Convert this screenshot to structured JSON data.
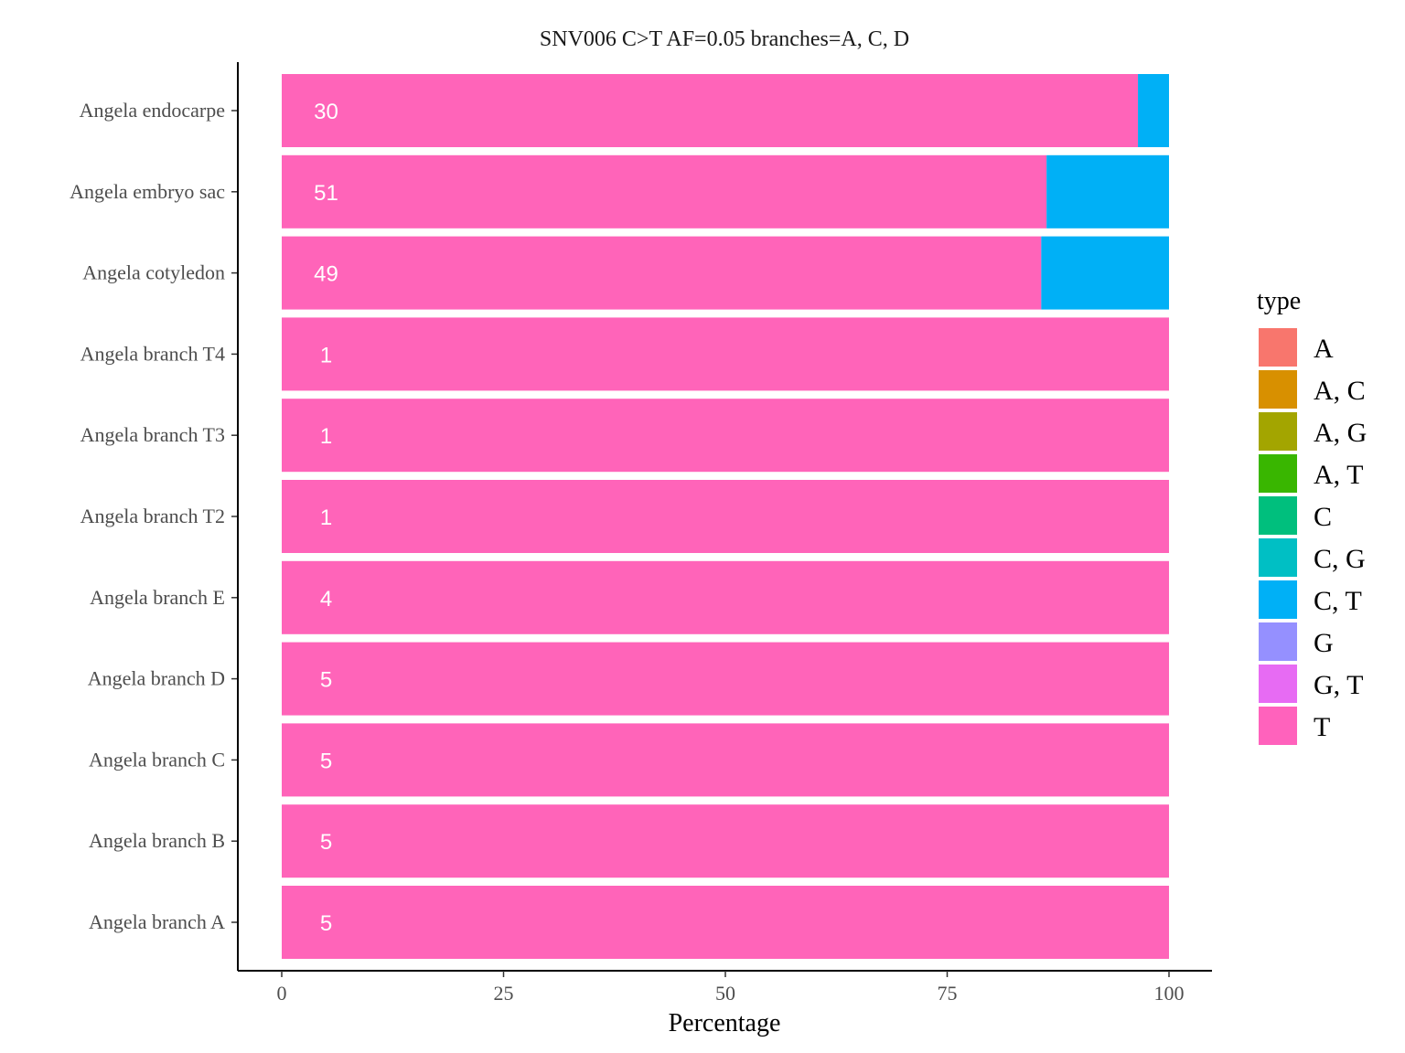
{
  "chart_data": {
    "type": "bar",
    "orientation": "horizontal",
    "stacked": true,
    "title": "SNV006 C>T AF=0.05 branches=A, C, D",
    "xlabel": "Percentage",
    "ylabel": "",
    "xlim": [
      0,
      100
    ],
    "xticks": [
      0,
      25,
      50,
      75,
      100
    ],
    "grid": false,
    "categories": [
      "Angela endocarpe",
      "Angela embryo sac",
      "Angela cotyledon",
      "Angela branch T4",
      "Angela branch T3",
      "Angela branch T2",
      "Angela branch E",
      "Angela branch D",
      "Angela branch C",
      "Angela branch B",
      "Angela branch A"
    ],
    "series": [
      {
        "name": "T",
        "color": "#FF64B9",
        "values": [
          96.5,
          86.2,
          85.6,
          100,
          100,
          100,
          100,
          100,
          100,
          100,
          100
        ]
      },
      {
        "name": "C, T",
        "color": "#00B0F6",
        "values": [
          3.5,
          13.8,
          14.4,
          0,
          0,
          0,
          0,
          0,
          0,
          0,
          0
        ]
      }
    ],
    "bar_labels": [
      "30",
      "51",
      "49",
      "1",
      "1",
      "1",
      "4",
      "5",
      "5",
      "5",
      "5"
    ],
    "legend": {
      "title": "type",
      "position": "right",
      "entries": [
        {
          "label": "A",
          "color": "#F8766D"
        },
        {
          "label": "A, C",
          "color": "#D89000"
        },
        {
          "label": "A, G",
          "color": "#A3A500"
        },
        {
          "label": "A, T",
          "color": "#39B600"
        },
        {
          "label": "C",
          "color": "#00BF7D"
        },
        {
          "label": "C, G",
          "color": "#00BFC4"
        },
        {
          "label": "C, T",
          "color": "#00B0F6"
        },
        {
          "label": "G",
          "color": "#9590FF"
        },
        {
          "label": "G, T",
          "color": "#E76BF3"
        },
        {
          "label": "T",
          "color": "#FF62BC"
        }
      ]
    }
  }
}
